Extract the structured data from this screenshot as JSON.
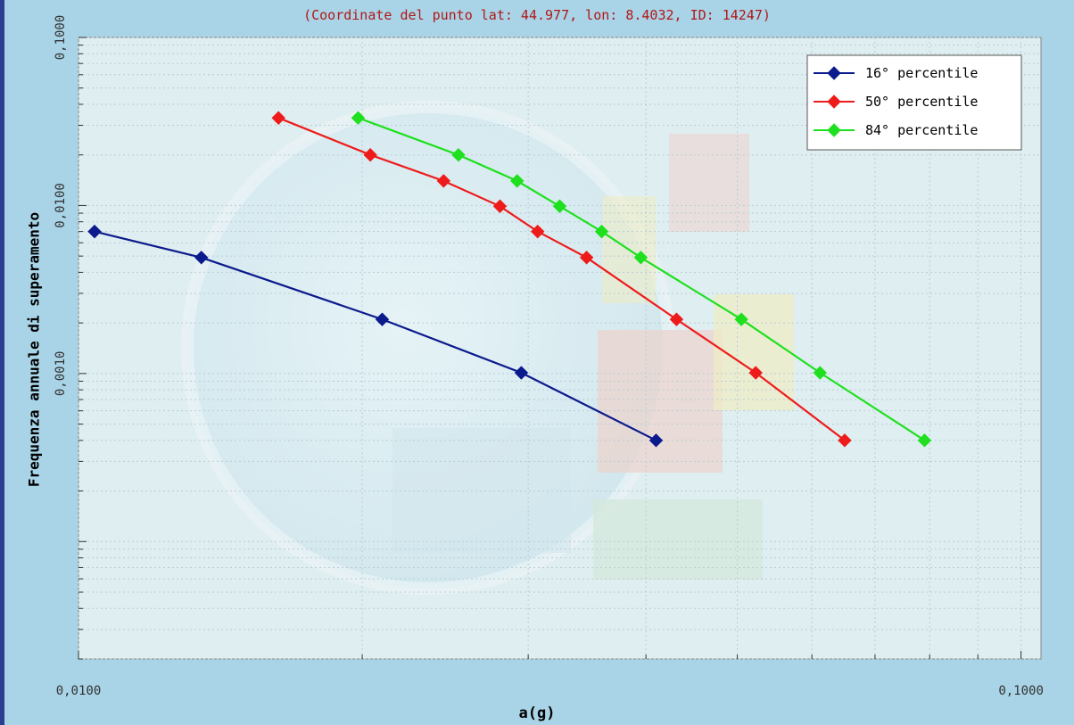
{
  "chart_data": {
    "type": "line",
    "subtitle": "(Coordinate del punto lat: 44.977, lon: 8.4032, ID: 14247)",
    "xlabel": "a(g)",
    "ylabel": "Frequenza annuale di superamento",
    "x_scale": "log",
    "y_scale": "log",
    "xlim": [
      0.01,
      0.105
    ],
    "ylim": [
      2e-05,
      0.1
    ],
    "x_ticks": [
      {
        "value": 0.01,
        "label": "0,0100"
      },
      {
        "value": 0.1,
        "label": "0,1000"
      }
    ],
    "y_ticks": [
      {
        "value": 0.001,
        "label": "0,0010"
      },
      {
        "value": 0.01,
        "label": "0,0100"
      },
      {
        "value": 0.1,
        "label": "0,1000"
      }
    ],
    "grid": true,
    "legend_position": "top-right",
    "series": [
      {
        "name": "16° percentile",
        "color": "#0b1a8c",
        "x": [
          0.0104,
          0.0135,
          0.021,
          0.0295,
          0.041
        ],
        "y": [
          0.007,
          0.0049,
          0.0021,
          0.00101,
          0.0004
        ]
      },
      {
        "name": "50° percentile",
        "color": "#ee1b1b",
        "x": [
          0.0163,
          0.0204,
          0.0244,
          0.028,
          0.0307,
          0.0346,
          0.0431,
          0.0523,
          0.065
        ],
        "y": [
          0.0332,
          0.02,
          0.014,
          0.0099,
          0.007,
          0.0049,
          0.0021,
          0.00101,
          0.0004
        ]
      },
      {
        "name": "84° percentile",
        "color": "#1fe01f",
        "x": [
          0.0198,
          0.0253,
          0.0292,
          0.0324,
          0.0359,
          0.0395,
          0.0505,
          0.0612,
          0.079
        ],
        "y": [
          0.0332,
          0.02,
          0.014,
          0.0099,
          0.007,
          0.0049,
          0.0021,
          0.00101,
          0.0004
        ]
      }
    ]
  }
}
